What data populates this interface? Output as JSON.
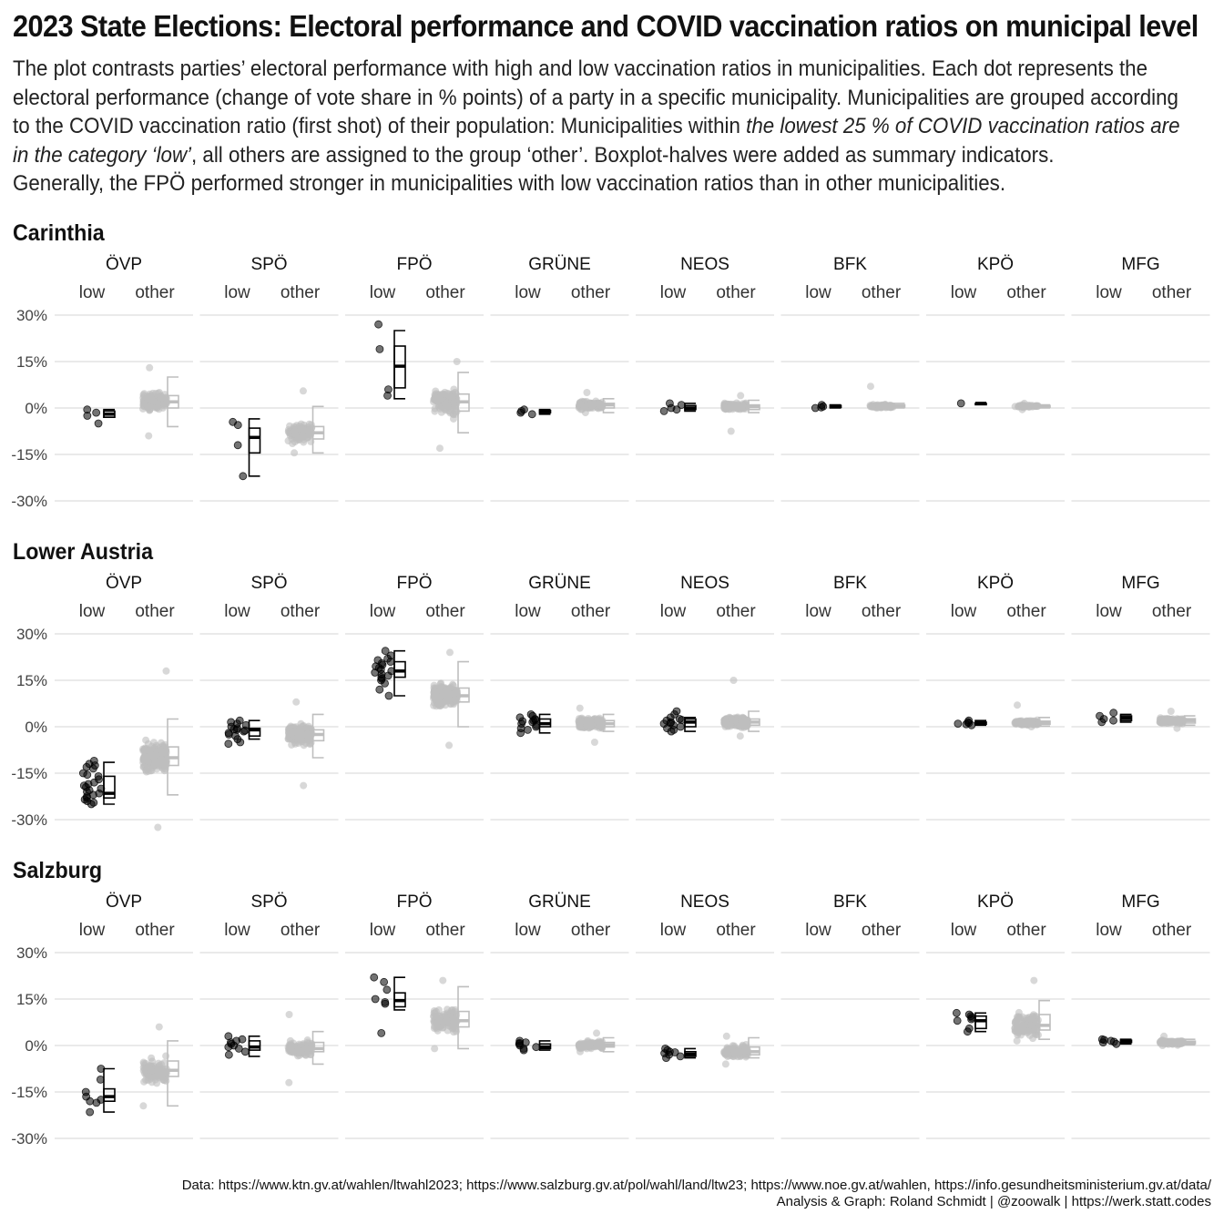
{
  "title": "2023 State Elections: Electoral performance and COVID vaccination ratios on municipal level",
  "subtitle": {
    "line1": "The plot contrasts parties’ electoral performance with high and low vaccination ratios in municipalities. Each dot represents the",
    "line2": "electoral performance (change of vote share in % points) of a party in a specific municipality. Municipalities are grouped according",
    "line3": "to the COVID vaccination ratio (first shot) of their population: Municipalities within ",
    "line3_italic": "the lowest 25 % of COVID vaccination ratios are",
    "line4_italic": "in the category ‘low’",
    "line4": ", all others are assigned to the group ‘other’. Boxplot-halves were added as summary indicators.",
    "line5": "Generally, the FPÖ performed stronger in municipalities with low vaccination ratios than in other municipalities."
  },
  "caption": {
    "line1": "Data: https://www.ktn.gv.at/wahlen/ltwahl2023; https://www.salzburg.gv.at/pol/wahl/land/ltw23; https://www.noe.gv.at/wahlen, https://info.gesundheitsministerium.gv.at/data/",
    "line2": "Analysis & Graph: Roland Schmidt | @zoowalk | https://werk.statt.codes"
  },
  "colors": {
    "low": "#000000",
    "other": "#bebebe",
    "grid": "#d4d4d4"
  },
  "chart_data": {
    "type": "scatter",
    "y_unit": "% points",
    "ylim": [
      -30,
      30
    ],
    "y_ticks": [
      30,
      15,
      0,
      -15,
      -30
    ],
    "y_tick_labels": [
      "30%",
      "15%",
      "0%",
      "-15%",
      "-30%"
    ],
    "groups": [
      "low",
      "other"
    ],
    "parties": [
      "ÖVP",
      "SPÖ",
      "FPÖ",
      "GRÜNE",
      "NEOS",
      "BFK",
      "KPÖ",
      "MFG"
    ],
    "grid": true,
    "legend": "none",
    "states": [
      {
        "name": "Carinthia",
        "panels": [
          {
            "party": "ÖVP",
            "low": {
              "points": [
                -0.5,
                -1.5,
                -2.5,
                -5
              ],
              "box": {
                "min": -3,
                "q1": -3,
                "median": -2,
                "q3": -1,
                "max": -0.5
              }
            },
            "other": {
              "n": 120,
              "range": [
                -9,
                13
              ],
              "box": {
                "min": -6,
                "q1": 0,
                "median": 2,
                "q3": 4,
                "max": 10
              }
            }
          },
          {
            "party": "SPÖ",
            "low": {
              "points": [
                -4.5,
                -5.5,
                -12,
                -22
              ],
              "box": {
                "min": -22,
                "q1": -14.5,
                "median": -9.5,
                "q3": -6.5,
                "max": -3.5
              }
            },
            "other": {
              "n": 120,
              "range": [
                -14.5,
                5.5
              ],
              "box": {
                "min": -14.5,
                "q1": -10,
                "median": -8,
                "q3": -6,
                "max": 0.5
              }
            }
          },
          {
            "party": "FPÖ",
            "low": {
              "points": [
                27,
                19,
                6,
                4
              ],
              "box": {
                "min": 3,
                "q1": 6.5,
                "median": 13.5,
                "q3": 20,
                "max": 25
              }
            },
            "other": {
              "n": 130,
              "range": [
                -13,
                15
              ],
              "box": {
                "min": -8,
                "q1": -1,
                "median": 2,
                "q3": 4.5,
                "max": 11.5
              }
            }
          },
          {
            "party": "GRÜNE",
            "low": {
              "points": [
                -0.5,
                -1,
                -1.5,
                -2
              ],
              "box": {
                "min": -2,
                "q1": -1.5,
                "median": -1.2,
                "q3": -0.8,
                "max": -0.5
              }
            },
            "other": {
              "n": 110,
              "range": [
                -1.5,
                5
              ],
              "box": {
                "min": -1.5,
                "q1": 0,
                "median": 1,
                "q3": 1.5,
                "max": 3
              }
            }
          },
          {
            "party": "NEOS",
            "low": {
              "points": [
                1.5,
                1,
                0,
                -0.5,
                -1
              ],
              "box": {
                "min": -1,
                "q1": -0.5,
                "median": 0,
                "q3": 0.8,
                "max": 1.5
              }
            },
            "other": {
              "n": 110,
              "range": [
                -7.5,
                4
              ],
              "box": {
                "min": -1.5,
                "q1": -0.5,
                "median": 0.5,
                "q3": 1,
                "max": 2.5
              }
            }
          },
          {
            "party": "BFK",
            "low": {
              "points": [
                0,
                0.5,
                1,
                0.2
              ],
              "box": {
                "min": 0,
                "q1": 0.2,
                "median": 0.5,
                "q3": 0.8,
                "max": 1
              }
            },
            "other": {
              "n": 60,
              "range": [
                0,
                7
              ],
              "box": {
                "min": 0,
                "q1": 0.3,
                "median": 0.6,
                "q3": 1,
                "max": 1.5
              }
            }
          },
          {
            "party": "KPÖ",
            "low": {
              "points": [
                1.5
              ],
              "box": {
                "min": 1.5,
                "q1": 1.5,
                "median": 1.5,
                "q3": 1.5,
                "max": 1.5
              }
            },
            "other": {
              "n": 40,
              "range": [
                -0.5,
                1.5
              ],
              "box": {
                "min": 0,
                "q1": 0.2,
                "median": 0.5,
                "q3": 0.8,
                "max": 1
              }
            }
          },
          {
            "party": "MFG",
            "low": null,
            "other": null
          }
        ]
      },
      {
        "name": "Lower Austria",
        "panels": [
          {
            "party": "ÖVP",
            "low": {
              "points": [
                -11,
                -12,
                -13,
                -15,
                -16,
                -17,
                -18,
                -18.5,
                -19,
                -20,
                -20.5,
                -21,
                -21.5,
                -22,
                -22.5,
                -23,
                -23.5,
                -24,
                -24.5,
                -25,
                -19.5,
                -15.5,
                -13.5,
                -12.5
              ],
              "box": {
                "min": -25,
                "q1": -23,
                "median": -21.5,
                "q3": -16,
                "max": -11.5
              }
            },
            "other": {
              "n": 220,
              "range": [
                -32.5,
                18
              ],
              "box": {
                "min": -22,
                "q1": -12.5,
                "median": -10,
                "q3": -6.5,
                "max": 2.5
              }
            }
          },
          {
            "party": "SPÖ",
            "low": {
              "points": [
                2,
                1.5,
                1,
                0.5,
                0,
                -0.5,
                -1,
                -1.5,
                -2,
                -2.5,
                -3,
                -4,
                -5,
                -5.5,
                -0.8,
                -1.2
              ],
              "box": {
                "min": -4,
                "q1": -3,
                "median": -1,
                "q3": -0.5,
                "max": 2
              }
            },
            "other": {
              "n": 230,
              "range": [
                -19,
                8
              ],
              "box": {
                "min": -10,
                "q1": -4.5,
                "median": -2.5,
                "q3": -1,
                "max": 4
              }
            }
          },
          {
            "party": "FPÖ",
            "low": {
              "points": [
                24.5,
                23,
                22,
                21,
                20,
                19.5,
                19,
                18.5,
                18,
                17.5,
                17,
                16.5,
                16,
                15.5,
                15,
                14,
                12,
                10,
                21.5,
                20.5
              ],
              "box": {
                "min": 10,
                "q1": 16,
                "median": 18,
                "q3": 21,
                "max": 24.5
              }
            },
            "other": {
              "n": 230,
              "range": [
                -6,
                24
              ],
              "box": {
                "min": 0,
                "q1": 8,
                "median": 10,
                "q3": 12.5,
                "max": 21
              }
            }
          },
          {
            "party": "GRÜNE",
            "low": {
              "points": [
                4,
                3.5,
                3,
                2.5,
                2,
                1.5,
                1,
                0.5,
                0,
                -0.5,
                -1,
                -2,
                1.8,
                2.2
              ],
              "box": {
                "min": -2,
                "q1": 0,
                "median": 1,
                "q3": 2.5,
                "max": 4
              }
            },
            "other": {
              "n": 230,
              "range": [
                -5,
                6
              ],
              "box": {
                "min": -1.5,
                "q1": 0,
                "median": 1,
                "q3": 2,
                "max": 4
              }
            }
          },
          {
            "party": "NEOS",
            "low": {
              "points": [
                5,
                4,
                3,
                2.5,
                2,
                1.5,
                1,
                0.5,
                0,
                -0.5,
                -1,
                -1.5,
                2.2,
                1.2
              ],
              "box": {
                "min": -1.5,
                "q1": 0,
                "median": 1.5,
                "q3": 2.5,
                "max": 3
              }
            },
            "other": {
              "n": 230,
              "range": [
                -3,
                15
              ],
              "box": {
                "min": -1.5,
                "q1": 0.5,
                "median": 1.5,
                "q3": 2.5,
                "max": 5
              }
            }
          },
          {
            "party": "BFK",
            "low": null,
            "other": null
          },
          {
            "party": "KPÖ",
            "low": {
              "points": [
                1.5,
                1,
                0.5,
                2,
                1.2,
                0.8
              ],
              "box": {
                "min": 0.5,
                "q1": 0.8,
                "median": 1.2,
                "q3": 1.5,
                "max": 2
              }
            },
            "other": {
              "n": 120,
              "range": [
                0,
                7
              ],
              "box": {
                "min": 0.2,
                "q1": 0.8,
                "median": 1.2,
                "q3": 1.8,
                "max": 3
              }
            }
          },
          {
            "party": "MFG",
            "low": {
              "points": [
                4.5,
                3.5,
                2.5,
                2,
                1.5
              ],
              "box": {
                "min": 1.5,
                "q1": 2,
                "median": 2.8,
                "q3": 3.5,
                "max": 4
              }
            },
            "other": {
              "n": 120,
              "range": [
                -0.5,
                5
              ],
              "box": {
                "min": 0.5,
                "q1": 1.2,
                "median": 2,
                "q3": 2.6,
                "max": 3.5
              }
            }
          }
        ]
      },
      {
        "name": "Salzburg",
        "panels": [
          {
            "party": "ÖVP",
            "low": {
              "points": [
                -7.5,
                -11,
                -15,
                -16.5,
                -17.5,
                -18,
                -18.5,
                -21.5
              ],
              "box": {
                "min": -21.5,
                "q1": -18,
                "median": -16.5,
                "q3": -14,
                "max": -7.5
              }
            },
            "other": {
              "n": 120,
              "range": [
                -19.5,
                6
              ],
              "box": {
                "min": -19.5,
                "q1": -10,
                "median": -8,
                "q3": -5,
                "max": 1.5
              }
            }
          },
          {
            "party": "SPÖ",
            "low": {
              "points": [
                3,
                2,
                1.5,
                1,
                0,
                -0.5,
                -1,
                -2,
                -3,
                0.5
              ],
              "box": {
                "min": -3.5,
                "q1": -1.5,
                "median": -0.5,
                "q3": 1.5,
                "max": 3
              }
            },
            "other": {
              "n": 120,
              "range": [
                -12,
                10
              ],
              "box": {
                "min": -6,
                "q1": -2,
                "median": -1,
                "q3": 1,
                "max": 4.5
              }
            }
          },
          {
            "party": "FPÖ",
            "low": {
              "points": [
                22,
                20.5,
                18,
                15,
                14,
                13.5,
                4
              ],
              "box": {
                "min": 11.5,
                "q1": 12.5,
                "median": 14.5,
                "q3": 17,
                "max": 22
              }
            },
            "other": {
              "n": 120,
              "range": [
                -1,
                21
              ],
              "box": {
                "min": -1,
                "q1": 6,
                "median": 8,
                "q3": 11,
                "max": 19
              }
            }
          },
          {
            "party": "GRÜNE",
            "low": {
              "points": [
                1.5,
                1,
                0.5,
                0,
                -0.5,
                -1,
                -1.5,
                0.8
              ],
              "box": {
                "min": -1.5,
                "q1": -1,
                "median": -0.5,
                "q3": 0.5,
                "max": 1.5
              }
            },
            "other": {
              "n": 110,
              "range": [
                -2,
                4
              ],
              "box": {
                "min": -2,
                "q1": -0.5,
                "median": 0.2,
                "q3": 1,
                "max": 2.5
              }
            }
          },
          {
            "party": "NEOS",
            "low": {
              "points": [
                -1,
                -1.5,
                -2,
                -2.5,
                -3,
                -3.5,
                -4,
                -2.2
              ],
              "box": {
                "min": -4,
                "q1": -3.5,
                "median": -2.8,
                "q3": -2,
                "max": -1
              }
            },
            "other": {
              "n": 110,
              "range": [
                -6,
                3
              ],
              "box": {
                "min": -4,
                "q1": -3,
                "median": -2,
                "q3": -0.5,
                "max": 2.5
              }
            }
          },
          {
            "party": "BFK",
            "low": null,
            "other": null
          },
          {
            "party": "KPÖ",
            "low": {
              "points": [
                10.5,
                10,
                9.5,
                9,
                8.5,
                8,
                5.5,
                4.5
              ],
              "box": {
                "min": 4.5,
                "q1": 5.5,
                "median": 8,
                "q3": 9.5,
                "max": 10.5
              }
            },
            "other": {
              "n": 120,
              "range": [
                1.5,
                21
              ],
              "box": {
                "min": 2,
                "q1": 5,
                "median": 6.5,
                "q3": 10,
                "max": 14.5
              }
            }
          },
          {
            "party": "MFG",
            "low": {
              "points": [
                2,
                1.5,
                1,
                0.5,
                1.8,
                1.2
              ],
              "box": {
                "min": 0.5,
                "q1": 1,
                "median": 1.3,
                "q3": 1.7,
                "max": 2
              }
            },
            "other": {
              "n": 100,
              "range": [
                0,
                3
              ],
              "box": {
                "min": 0.2,
                "q1": 0.6,
                "median": 1,
                "q3": 1.4,
                "max": 2
              }
            }
          }
        ]
      }
    ]
  }
}
